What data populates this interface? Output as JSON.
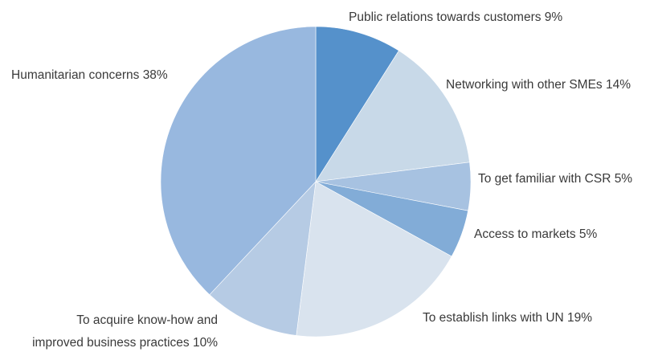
{
  "chart_data": {
    "type": "pie",
    "start_angle_deg": 0,
    "direction": "clockwise",
    "slices": [
      {
        "label": "Public relations towards customers 9%",
        "value": 9,
        "color": "#5591cb"
      },
      {
        "label": "Networking with other SMEs 14%",
        "value": 14,
        "color": "#c8d9e8"
      },
      {
        "label": "To get familiar with CSR 5%",
        "value": 5,
        "color": "#a7c2e1"
      },
      {
        "label": "Access to markets 5%",
        "value": 5,
        "color": "#82acd7"
      },
      {
        "label": "To establish links with UN 19%",
        "value": 19,
        "color": "#d9e3ee"
      },
      {
        "label": "To acquire know-how and improved business practices 10%",
        "label_lines": [
          "To acquire know-how and",
          "improved business practices 10%"
        ],
        "value": 10,
        "color": "#b6cbe4"
      },
      {
        "label": "Humanitarian concerns 38%",
        "value": 38,
        "color": "#98b8df"
      }
    ]
  }
}
